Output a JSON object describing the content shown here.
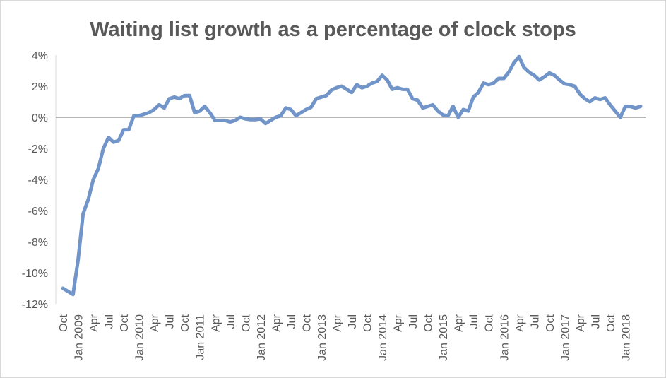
{
  "chart_data": {
    "type": "line",
    "title": "Waiting list growth as a percentage of clock stops",
    "xlabel": "",
    "ylabel": "",
    "ylim": [
      -12,
      4
    ],
    "y_ticks": [
      "4%",
      "2%",
      "0%",
      "-2%",
      "-4%",
      "-6%",
      "-8%",
      "-10%",
      "-12%"
    ],
    "y_tick_values": [
      4,
      2,
      0,
      -2,
      -4,
      -6,
      -8,
      -10,
      -12
    ],
    "x_ticks": [
      "Oct",
      "Jan 2009",
      "Apr",
      "Jul",
      "Oct",
      "Jan 2010",
      "Apr",
      "Jul",
      "Oct",
      "Jan 2011",
      "Apr",
      "Jul",
      "Oct",
      "Jan 2012",
      "Apr",
      "Jul",
      "Oct",
      "Jan 2013",
      "Apr",
      "Jul",
      "Oct",
      "Jan 2014",
      "Apr",
      "Jul",
      "Oct",
      "Jan 2015",
      "Apr",
      "Jul",
      "Oct",
      "Jan 2016",
      "Apr",
      "Jul",
      "Oct",
      "Jan 2017",
      "Apr",
      "Jul",
      "Oct",
      "Jan 2018"
    ],
    "grid": false,
    "legend": "none",
    "series": [
      {
        "color": "#7194c9",
        "values": [
          -11.0,
          -11.2,
          -11.4,
          -9.2,
          -6.2,
          -5.3,
          -4.0,
          -3.3,
          -2.0,
          -1.3,
          -1.6,
          -1.5,
          -0.8,
          -0.8,
          0.1,
          0.1,
          0.2,
          0.3,
          0.5,
          0.8,
          0.6,
          1.2,
          1.3,
          1.2,
          1.4,
          1.4,
          0.3,
          0.4,
          0.7,
          0.3,
          -0.2,
          -0.2,
          -0.2,
          -0.3,
          -0.2,
          0.0,
          -0.1,
          -0.15,
          -0.15,
          -0.1,
          -0.4,
          -0.2,
          0.0,
          0.1,
          0.6,
          0.5,
          0.1,
          0.3,
          0.5,
          0.65,
          1.2,
          1.3,
          1.4,
          1.75,
          1.9,
          2.0,
          1.8,
          1.6,
          2.1,
          1.9,
          2.0,
          2.2,
          2.3,
          2.7,
          2.4,
          1.8,
          1.9,
          1.8,
          1.8,
          1.2,
          1.1,
          0.6,
          0.7,
          0.8,
          0.4,
          0.15,
          0.1,
          0.7,
          0.0,
          0.5,
          0.4,
          1.3,
          1.6,
          2.2,
          2.1,
          2.2,
          2.5,
          2.5,
          2.9,
          3.5,
          3.9,
          3.2,
          2.9,
          2.7,
          2.4,
          2.6,
          2.85,
          2.7,
          2.4,
          2.15,
          2.1,
          2.0,
          1.5,
          1.2,
          1.0,
          1.25,
          1.15,
          1.25,
          0.8,
          0.4,
          0.0,
          0.7,
          0.7,
          0.6,
          0.7
        ]
      }
    ]
  }
}
